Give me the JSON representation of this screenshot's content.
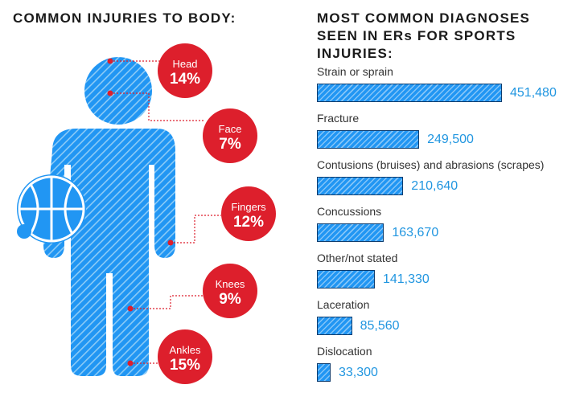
{
  "left_title": "COMMON INJURIES TO BODY:",
  "right_title": [
    "MOST COMMON DIAGNOSES",
    "SEEN IN ERs FOR SPORTS INJURIES:"
  ],
  "colors": {
    "figure": "#2196f3",
    "callout": "#dd1f2c",
    "value_text": "#2196e0",
    "bar_border": "#0d3c6e"
  },
  "body_callouts": [
    {
      "part": "Head",
      "pct": "14%"
    },
    {
      "part": "Face",
      "pct": "7%"
    },
    {
      "part": "Fingers",
      "pct": "12%"
    },
    {
      "part": "Knees",
      "pct": "9%"
    },
    {
      "part": "Ankles",
      "pct": "15%"
    }
  ],
  "chart_data": {
    "type": "bar",
    "orientation": "horizontal",
    "title": "MOST COMMON DIAGNOSES SEEN IN ERs FOR SPORTS INJURIES:",
    "categories": [
      "Strain or sprain",
      "Fracture",
      "Contusions (bruises) and abrasions (scrapes)",
      "Concussions",
      "Other/not stated",
      "Laceration",
      "Dislocation"
    ],
    "values": [
      451480,
      249500,
      210640,
      163670,
      141330,
      85560,
      33300
    ],
    "value_labels": [
      "451,480",
      "249,500",
      "210,640",
      "163,670",
      "141,330",
      "85,560",
      "33,300"
    ],
    "grid": false
  }
}
